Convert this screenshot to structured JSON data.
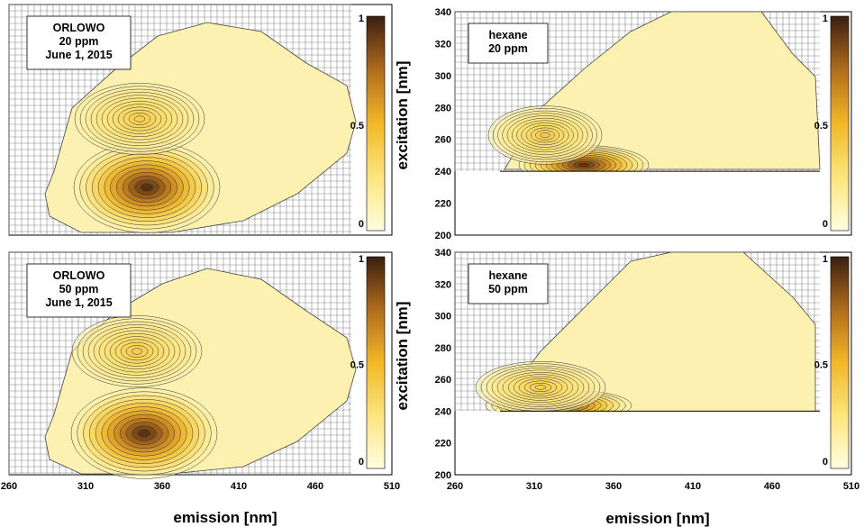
{
  "figure": {
    "x_axis_label": "emission   [nm]",
    "y_axis_label": "excitation   [nm]"
  },
  "chart_data": [
    {
      "type": "heatmap",
      "panel": "top-left",
      "label_lines": [
        "ORLOWO",
        "20 ppm",
        "June 1, 2015"
      ],
      "xlim": [
        260,
        510
      ],
      "ylim": [
        200,
        340
      ],
      "peaks": [
        {
          "emission": 335,
          "excitation": 227,
          "intensity": 1.0
        },
        {
          "emission": 325,
          "excitation": 275,
          "intensity": 0.4
        }
      ],
      "colorbar": {
        "min": 0,
        "max": 1,
        "ticks": [
          "0",
          "0.5",
          "1"
        ]
      }
    },
    {
      "type": "heatmap",
      "panel": "top-right",
      "label_lines": [
        "hexane",
        "20 ppm"
      ],
      "xlim": [
        260,
        510
      ],
      "ylim": [
        200,
        340
      ],
      "y_ticks": [
        200,
        220,
        240,
        260,
        280,
        300,
        320,
        340
      ],
      "peaks": [
        {
          "emission": 328,
          "excitation": 242,
          "intensity": 1.0
        }
      ],
      "colorbar": {
        "min": 0,
        "max": 1,
        "ticks": [
          "0",
          "0.5",
          "1"
        ]
      }
    },
    {
      "type": "heatmap",
      "panel": "bottom-left",
      "label_lines": [
        "ORLOWO",
        "50 ppm",
        "June 1, 2015"
      ],
      "xlim": [
        260,
        510
      ],
      "ylim": [
        200,
        340
      ],
      "x_ticks": [
        260,
        310,
        360,
        410,
        460,
        510
      ],
      "peaks": [
        {
          "emission": 337,
          "excitation": 227,
          "intensity": 1.0
        },
        {
          "emission": 325,
          "excitation": 275,
          "intensity": 0.4
        }
      ],
      "colorbar": {
        "min": 0,
        "max": 1,
        "ticks": [
          "0",
          "0.5",
          "1"
        ]
      }
    },
    {
      "type": "heatmap",
      "panel": "bottom-right",
      "label_lines": [
        "hexane",
        "50 ppm"
      ],
      "xlim": [
        260,
        510
      ],
      "ylim": [
        200,
        340
      ],
      "x_ticks": [
        260,
        310,
        360,
        410,
        460,
        510
      ],
      "y_ticks": [
        200,
        220,
        240,
        260,
        280,
        300,
        320,
        340
      ],
      "peaks": [
        {
          "emission": 320,
          "excitation": 242,
          "intensity": 1.0
        }
      ],
      "colorbar": {
        "min": 0,
        "max": 1,
        "ticks": [
          "0",
          "0.5",
          "1"
        ]
      }
    }
  ]
}
